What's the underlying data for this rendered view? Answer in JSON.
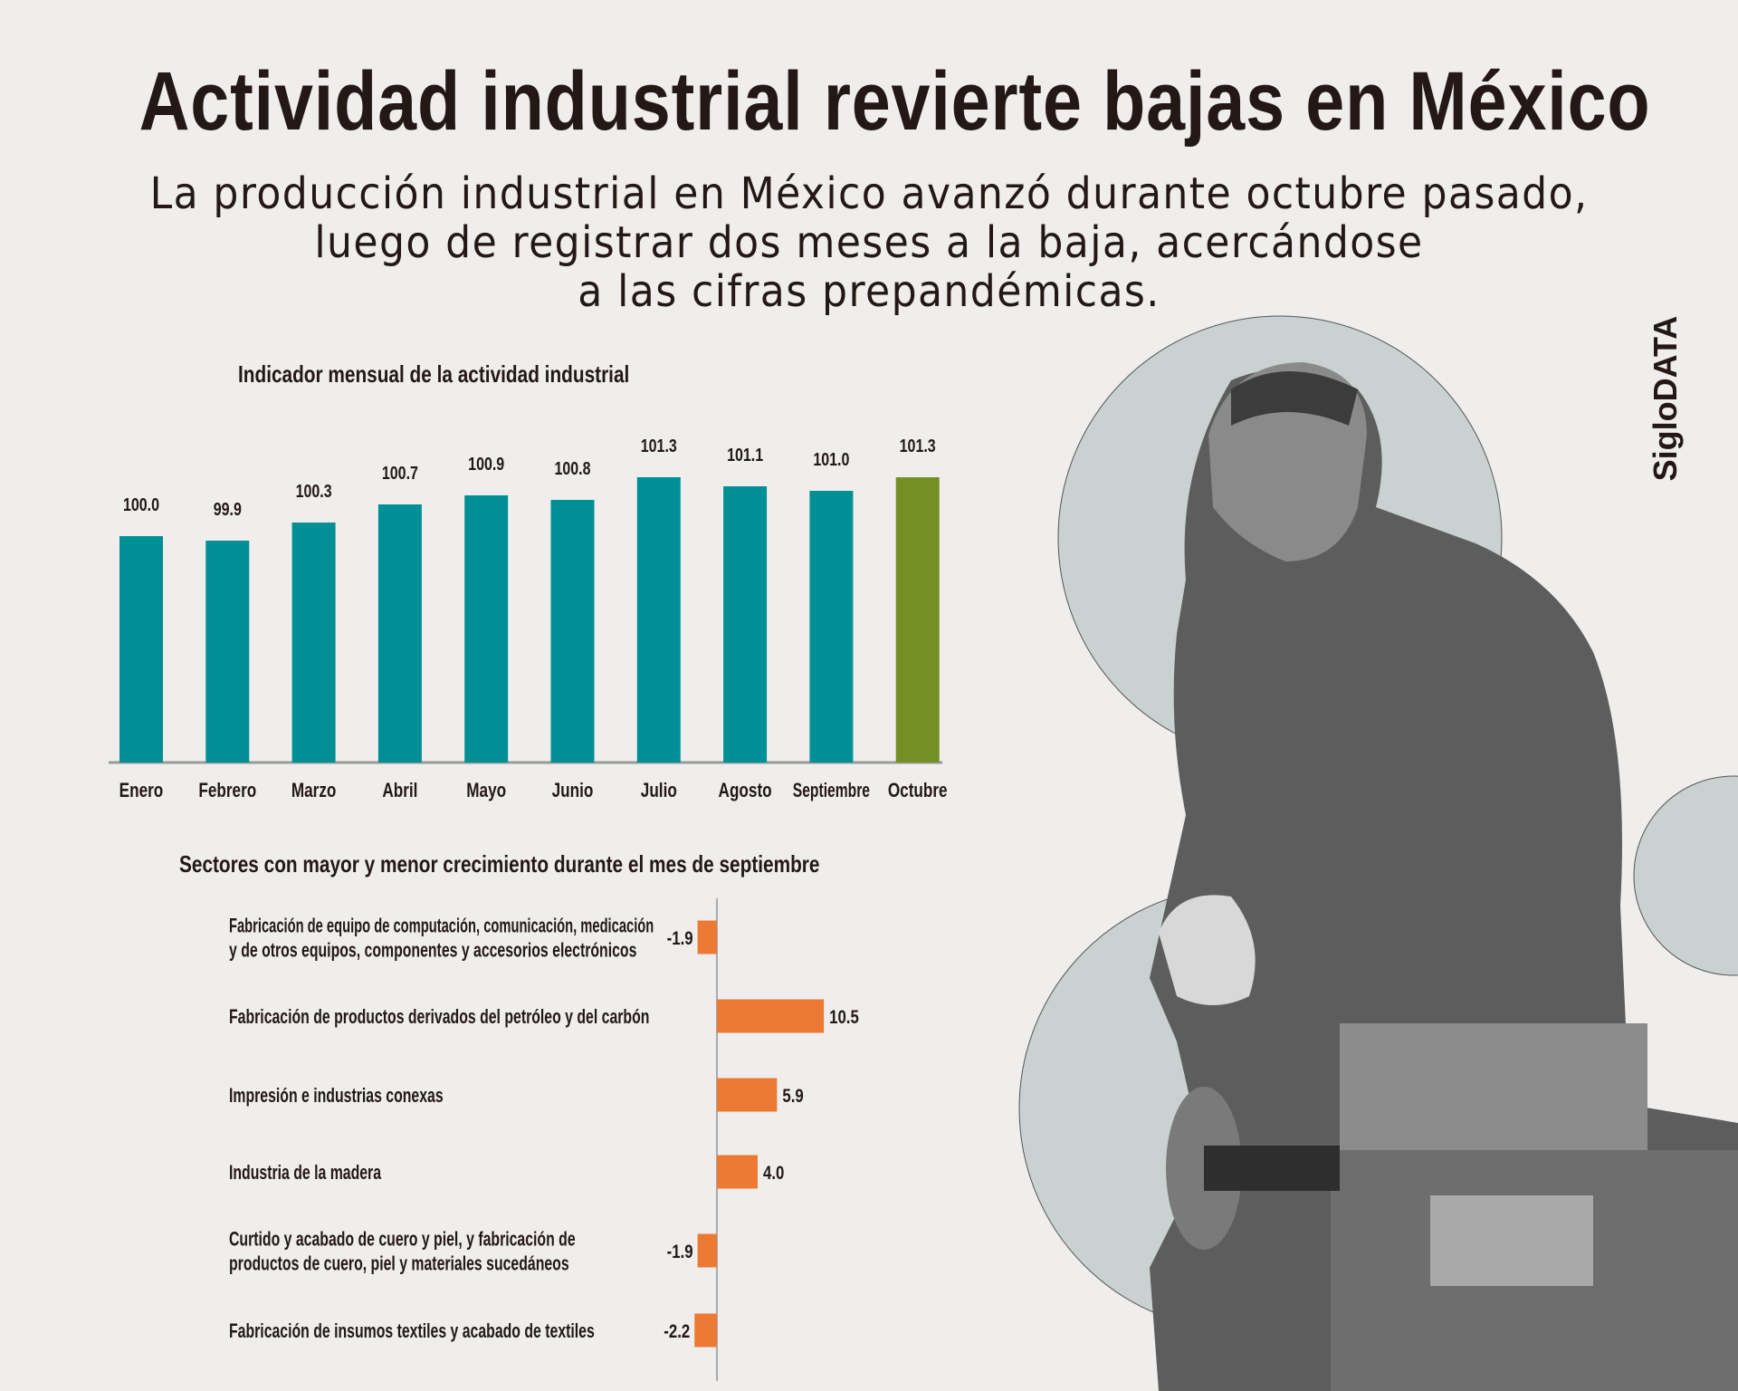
{
  "header": {
    "title": "Actividad industrial revierte bajas en México",
    "subtitle_lines": [
      "La producción industrial en México avanzó durante octubre pasado,",
      "luego de registrar dos meses a la baja, acercándose",
      "a las cifras prepandémicas."
    ]
  },
  "brand": "SigloDATA",
  "colors": {
    "bar": "#008f95",
    "highlight": "#748f24",
    "sector_bar": "#ec7a35",
    "background": "#efeeec",
    "circle": "#c9d2d1"
  },
  "chart_data": [
    {
      "type": "bar",
      "title": "Indicador mensual de la actividad industrial",
      "categories": [
        "Enero",
        "Febrero",
        "Marzo",
        "Abril",
        "Mayo",
        "Junio",
        "Julio",
        "Agosto",
        "Septiembre",
        "Octubre"
      ],
      "values": [
        100.0,
        99.9,
        100.3,
        100.7,
        100.9,
        100.8,
        101.3,
        101.1,
        101.0,
        101.3
      ],
      "value_labels": [
        "100.0",
        "99.9",
        "100.3",
        "100.7",
        "100.9",
        "100.8",
        "101.3",
        "101.1",
        "101.0",
        "101.3"
      ],
      "highlight": "Octubre",
      "ylim": [
        95,
        102
      ],
      "grid": false,
      "xlabel": "",
      "ylabel": ""
    },
    {
      "type": "bar",
      "orientation": "horizontal",
      "title": "Sectores con mayor y menor crecimiento durante el mes de septiembre",
      "categories": [
        [
          "Fabricación de equipo de computación, comunicación, medicación",
          "y de otros equipos, componentes y accesorios electrónicos"
        ],
        [
          "Fabricación de productos derivados del petróleo y del carbón"
        ],
        [
          "Impresión e industrias conexas"
        ],
        [
          "Industria de la madera"
        ],
        [
          "Curtido y acabado de cuero y piel, y fabricación de",
          "productos de cuero, piel y materiales sucedáneos"
        ],
        [
          "Fabricación de insumos textiles y acabado de textiles"
        ]
      ],
      "values": [
        -1.9,
        10.5,
        5.9,
        4.0,
        -1.9,
        -2.2
      ],
      "value_labels": [
        "-1.9",
        "10.5",
        "5.9",
        "4.0",
        "-1.9",
        "-2.2"
      ],
      "xlim": [
        -3,
        12
      ],
      "grid": false
    }
  ]
}
